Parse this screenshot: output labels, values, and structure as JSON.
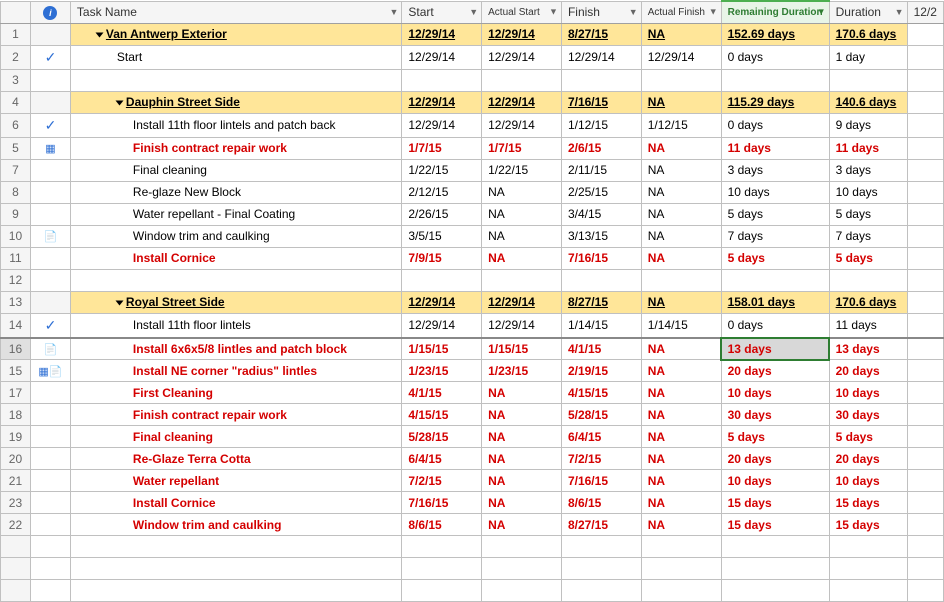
{
  "headers": {
    "info": "i",
    "task": "Task Name",
    "start": "Start",
    "astart": "Actual Start",
    "finish": "Finish",
    "afinish": "Actual Finish",
    "remain": "Remaining Duration",
    "duration": "Duration",
    "right": "12/2"
  },
  "rows": [
    {
      "num": "1",
      "info": "",
      "summary": true,
      "indent": 1,
      "task": "Van Antwerp Exterior",
      "start": "12/29/14",
      "astart": "12/29/14",
      "finish": "8/27/15",
      "afinish": "NA",
      "remain": "152.69 days",
      "duration": "170.6 days"
    },
    {
      "num": "2",
      "info": "check",
      "indent": 2,
      "task": "Start",
      "start": "12/29/14",
      "astart": "12/29/14",
      "finish": "12/29/14",
      "afinish": "12/29/14",
      "remain": "0 days",
      "duration": "1 day"
    },
    {
      "num": "3",
      "blank": true
    },
    {
      "num": "4",
      "info": "",
      "summary": true,
      "indent": 2,
      "task": "Dauphin Street Side",
      "start": "12/29/14",
      "astart": "12/29/14",
      "finish": "7/16/15",
      "afinish": "NA",
      "remain": "115.29 days",
      "duration": "140.6 days"
    },
    {
      "num": "6",
      "info": "check",
      "indent": 3,
      "task": "Install 11th floor lintels and patch back",
      "start": "12/29/14",
      "astart": "12/29/14",
      "finish": "1/12/15",
      "afinish": "1/12/15",
      "remain": "0 days",
      "duration": "9 days"
    },
    {
      "num": "5",
      "info": "cal",
      "indent": 3,
      "critical": true,
      "task": "Finish contract repair work",
      "start": "1/7/15",
      "astart": "1/7/15",
      "finish": "2/6/15",
      "afinish": "NA",
      "remain": "11 days",
      "duration": "11 days"
    },
    {
      "num": "7",
      "info": "",
      "indent": 3,
      "task": "Final cleaning",
      "start": "1/22/15",
      "astart": "1/22/15",
      "finish": "2/11/15",
      "afinish": "NA",
      "remain": "3 days",
      "duration": "3 days"
    },
    {
      "num": "8",
      "info": "",
      "indent": 3,
      "task": "Re-glaze New Block",
      "start": "2/12/15",
      "astart": "NA",
      "finish": "2/25/15",
      "afinish": "NA",
      "remain": "10 days",
      "duration": "10 days"
    },
    {
      "num": "9",
      "info": "",
      "indent": 3,
      "task": "Water repellant - Final Coating",
      "start": "2/26/15",
      "astart": "NA",
      "finish": "3/4/15",
      "afinish": "NA",
      "remain": "5 days",
      "duration": "5 days"
    },
    {
      "num": "10",
      "info": "note",
      "indent": 3,
      "task": "Window trim and caulking",
      "start": "3/5/15",
      "astart": "NA",
      "finish": "3/13/15",
      "afinish": "NA",
      "remain": "7 days",
      "duration": "7 days"
    },
    {
      "num": "11",
      "info": "",
      "indent": 3,
      "critical": true,
      "task": "Install Cornice",
      "start": "7/9/15",
      "astart": "NA",
      "finish": "7/16/15",
      "afinish": "NA",
      "remain": "5 days",
      "duration": "5 days"
    },
    {
      "num": "12",
      "blank": true
    },
    {
      "num": "13",
      "info": "",
      "summary": true,
      "indent": 2,
      "task": "Royal Street Side",
      "start": "12/29/14",
      "astart": "12/29/14",
      "finish": "8/27/15",
      "afinish": "NA",
      "remain": "158.01 days",
      "duration": "170.6 days"
    },
    {
      "num": "14",
      "info": "check",
      "indent": 3,
      "task": "Install 11th floor lintels",
      "start": "12/29/14",
      "astart": "12/29/14",
      "finish": "1/14/15",
      "afinish": "1/14/15",
      "remain": "0 days",
      "duration": "11 days"
    },
    {
      "num": "16",
      "info": "note",
      "indent": 3,
      "critical": true,
      "selected": true,
      "thickTop": true,
      "task": "Install 6x6x5/8 lintles and patch block",
      "start": "1/15/15",
      "astart": "1/15/15",
      "finish": "4/1/15",
      "afinish": "NA",
      "remain": "13 days",
      "duration": "13 days"
    },
    {
      "num": "15",
      "info": "calnote",
      "indent": 3,
      "critical": true,
      "task": "Install NE corner \"radius\" lintles",
      "start": "1/23/15",
      "astart": "1/23/15",
      "finish": "2/19/15",
      "afinish": "NA",
      "remain": "20 days",
      "duration": "20 days"
    },
    {
      "num": "17",
      "info": "",
      "indent": 3,
      "critical": true,
      "task": "First Cleaning",
      "start": "4/1/15",
      "astart": "NA",
      "finish": "4/15/15",
      "afinish": "NA",
      "remain": "10 days",
      "duration": "10 days"
    },
    {
      "num": "18",
      "info": "",
      "indent": 3,
      "critical": true,
      "task": "Finish contract repair work",
      "start": "4/15/15",
      "astart": "NA",
      "finish": "5/28/15",
      "afinish": "NA",
      "remain": "30 days",
      "duration": "30 days"
    },
    {
      "num": "19",
      "info": "",
      "indent": 3,
      "critical": true,
      "task": "Final cleaning",
      "start": "5/28/15",
      "astart": "NA",
      "finish": "6/4/15",
      "afinish": "NA",
      "remain": "5 days",
      "duration": "5 days"
    },
    {
      "num": "20",
      "info": "",
      "indent": 3,
      "critical": true,
      "task": "Re-Glaze Terra Cotta",
      "start": "6/4/15",
      "astart": "NA",
      "finish": "7/2/15",
      "afinish": "NA",
      "remain": "20 days",
      "duration": "20 days"
    },
    {
      "num": "21",
      "info": "",
      "indent": 3,
      "critical": true,
      "task": "Water repellant",
      "start": "7/2/15",
      "astart": "NA",
      "finish": "7/16/15",
      "afinish": "NA",
      "remain": "10 days",
      "duration": "10 days"
    },
    {
      "num": "23",
      "info": "",
      "indent": 3,
      "critical": true,
      "task": "Install Cornice",
      "start": "7/16/15",
      "astart": "NA",
      "finish": "8/6/15",
      "afinish": "NA",
      "remain": "15 days",
      "duration": "15 days"
    },
    {
      "num": "22",
      "info": "",
      "indent": 3,
      "critical": true,
      "task": "Window trim and caulking",
      "start": "8/6/15",
      "astart": "NA",
      "finish": "8/27/15",
      "afinish": "NA",
      "remain": "15 days",
      "duration": "15 days"
    },
    {
      "num": "",
      "blank": true
    },
    {
      "num": "",
      "blank": true
    },
    {
      "num": "",
      "blank": true
    }
  ]
}
